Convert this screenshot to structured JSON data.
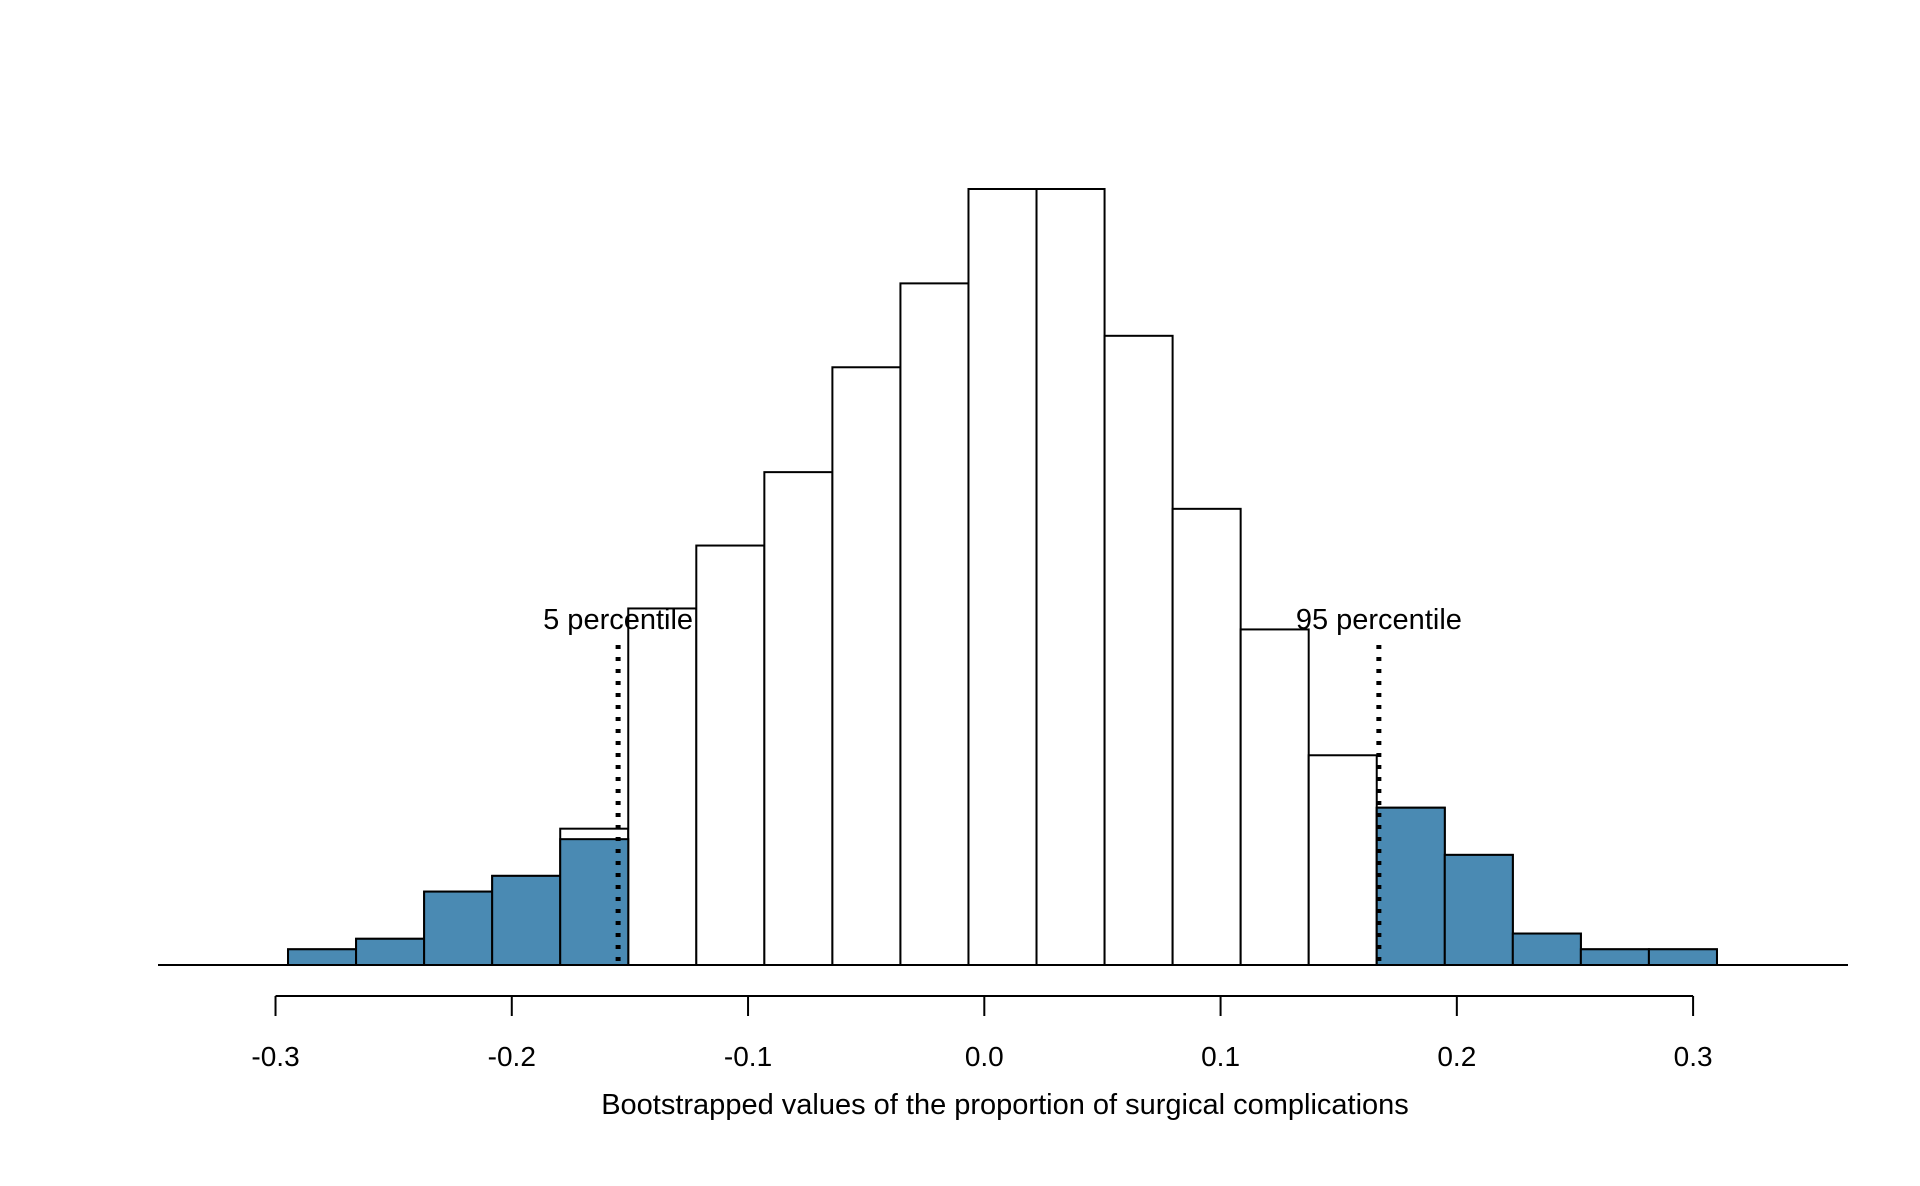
{
  "chart_data": {
    "type": "bar",
    "xlabel": "Bootstrapped values of the proportion of surgical complications",
    "ylabel": "",
    "title": "",
    "bin_width": 0.0288,
    "bins": [
      {
        "x0": -0.3235,
        "x1": -0.2947,
        "count": 0,
        "lower_tail": 0,
        "upper_tail": 0
      },
      {
        "x0": -0.2947,
        "x1": -0.2659,
        "count": 3,
        "lower_tail": 3,
        "upper_tail": 0
      },
      {
        "x0": -0.2659,
        "x1": -0.2371,
        "count": 5,
        "lower_tail": 5,
        "upper_tail": 0
      },
      {
        "x0": -0.2371,
        "x1": -0.2083,
        "count": 14,
        "lower_tail": 14,
        "upper_tail": 0
      },
      {
        "x0": -0.2083,
        "x1": -0.1795,
        "count": 17,
        "lower_tail": 17,
        "upper_tail": 0
      },
      {
        "x0": -0.1795,
        "x1": -0.1507,
        "count": 26,
        "lower_tail": 24,
        "upper_tail": 0
      },
      {
        "x0": -0.1507,
        "x1": -0.1219,
        "count": 68,
        "lower_tail": 0,
        "upper_tail": 0
      },
      {
        "x0": -0.1219,
        "x1": -0.0931,
        "count": 80,
        "lower_tail": 0,
        "upper_tail": 0
      },
      {
        "x0": -0.0931,
        "x1": -0.0643,
        "count": 94,
        "lower_tail": 0,
        "upper_tail": 0
      },
      {
        "x0": -0.0643,
        "x1": -0.0355,
        "count": 114,
        "lower_tail": 0,
        "upper_tail": 0
      },
      {
        "x0": -0.0355,
        "x1": -0.0067,
        "count": 130,
        "lower_tail": 0,
        "upper_tail": 0
      },
      {
        "x0": -0.0067,
        "x1": 0.0221,
        "count": 148,
        "lower_tail": 0,
        "upper_tail": 0
      },
      {
        "x0": 0.0221,
        "x1": 0.0509,
        "count": 148,
        "lower_tail": 0,
        "upper_tail": 0
      },
      {
        "x0": 0.0509,
        "x1": 0.0797,
        "count": 120,
        "lower_tail": 0,
        "upper_tail": 0
      },
      {
        "x0": 0.0797,
        "x1": 0.1085,
        "count": 87,
        "lower_tail": 0,
        "upper_tail": 0
      },
      {
        "x0": 0.1085,
        "x1": 0.1373,
        "count": 64,
        "lower_tail": 0,
        "upper_tail": 0
      },
      {
        "x0": 0.1373,
        "x1": 0.1661,
        "count": 40,
        "lower_tail": 0,
        "upper_tail": 0
      },
      {
        "x0": 0.1661,
        "x1": 0.1949,
        "count": 30,
        "lower_tail": 0,
        "upper_tail": 30
      },
      {
        "x0": 0.1949,
        "x1": 0.2237,
        "count": 21,
        "lower_tail": 0,
        "upper_tail": 21
      },
      {
        "x0": 0.2237,
        "x1": 0.2525,
        "count": 6,
        "lower_tail": 0,
        "upper_tail": 6
      },
      {
        "x0": 0.2525,
        "x1": 0.2813,
        "count": 3,
        "lower_tail": 0,
        "upper_tail": 3
      },
      {
        "x0": 0.2813,
        "x1": 0.3101,
        "count": 3,
        "lower_tail": 0,
        "upper_tail": 3
      },
      {
        "x0": 0.3101,
        "x1": 0.3389,
        "count": 0,
        "lower_tail": 0,
        "upper_tail": 0
      }
    ],
    "xlim": [
      -0.3235,
      0.3389
    ],
    "ylim": [
      0,
      148
    ],
    "x_ticks": [
      {
        "value": -0.3,
        "label": "-0.3"
      },
      {
        "value": -0.2,
        "label": "-0.2"
      },
      {
        "value": -0.1,
        "label": "-0.1"
      },
      {
        "value": 0.0,
        "label": "0.0"
      },
      {
        "value": 0.1,
        "label": "0.1"
      },
      {
        "value": 0.2,
        "label": "0.2"
      },
      {
        "value": 0.3,
        "label": "0.3"
      }
    ],
    "percentiles": [
      {
        "label": "5 percentile",
        "value": -0.155
      },
      {
        "label": "95 percentile",
        "value": 0.167
      }
    ],
    "colors": {
      "tail_fill": "#4a8ab3",
      "bar_fill": "#ffffff",
      "outline": "#000000"
    },
    "grid": false
  }
}
